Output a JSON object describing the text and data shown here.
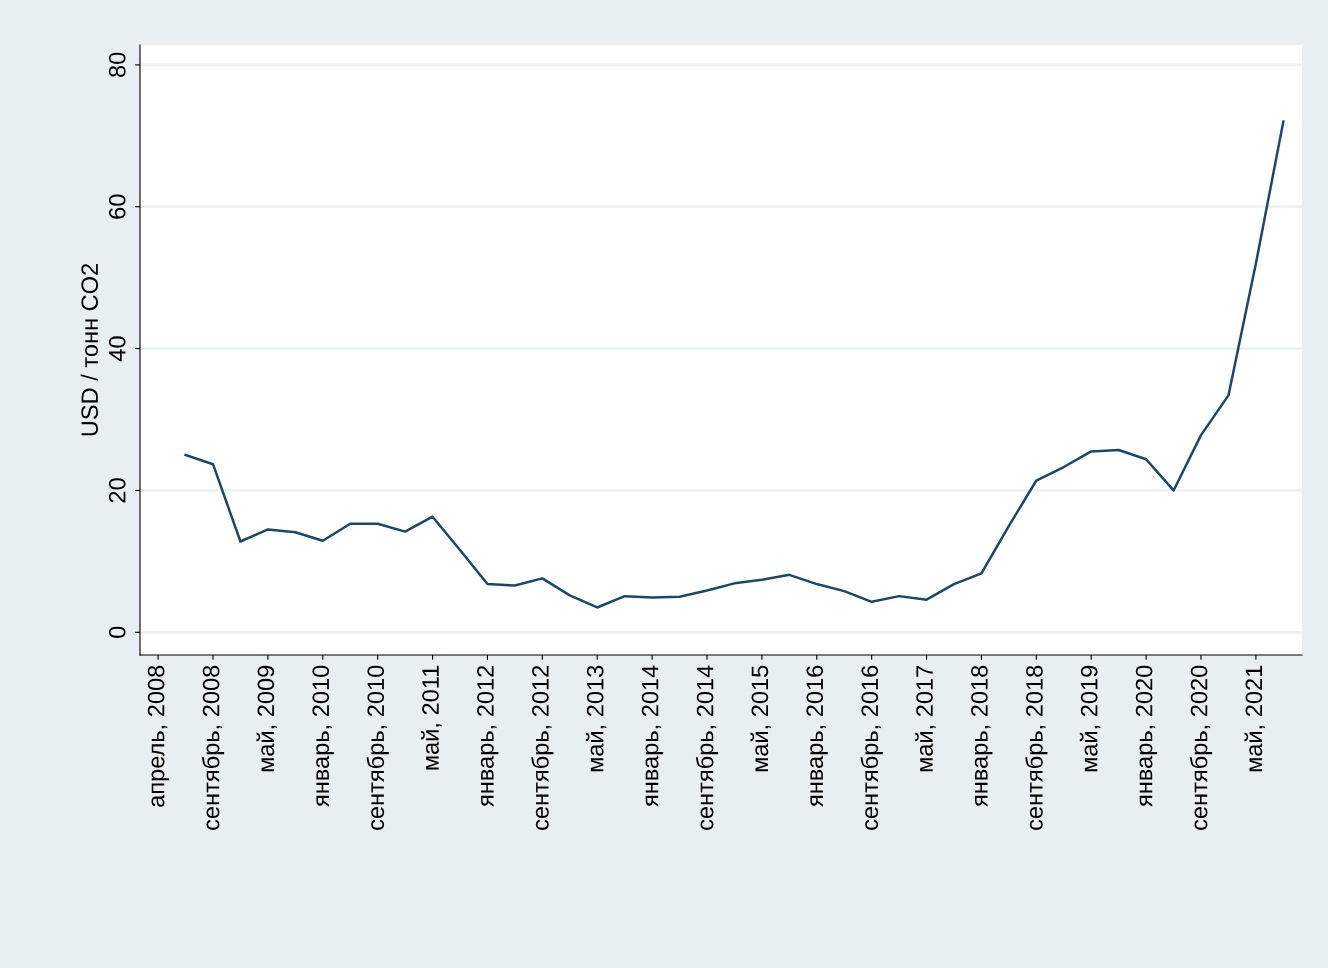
{
  "chart_data": {
    "type": "line",
    "ylabel": "USD / тонн CO2",
    "categories": [
      "апрель, 2008",
      null,
      "сентябрь, 2008",
      null,
      "май, 2009",
      null,
      "январь, 2010",
      null,
      "сентябрь, 2010",
      null,
      "май, 2011",
      null,
      "январь, 2012",
      null,
      "сентябрь, 2012",
      null,
      "май, 2013",
      null,
      "январь, 2014",
      null,
      "сентябрь, 2014",
      null,
      "май, 2015",
      null,
      "январь, 2016",
      null,
      "сентябрь, 2016",
      null,
      "май, 2017",
      null,
      "январь, 2018",
      null,
      "сентябрь, 2018",
      null,
      "май, 2019",
      null,
      "январь, 2020",
      null,
      "сентябрь, 2020",
      null,
      "май, 2021",
      null
    ],
    "series": [
      {
        "color": "#1a476f",
        "values": [
          null,
          25,
          23.7,
          12.8,
          14.5,
          14.1,
          12.9,
          15.3,
          15.3,
          14.2,
          16.3,
          11.6,
          6.8,
          6.6,
          7.6,
          5.2,
          3.5,
          5.1,
          4.9,
          5.0,
          5.9,
          6.9,
          7.4,
          8.1,
          6.8,
          5.8,
          4.3,
          5.1,
          4.6,
          6.8,
          8.3,
          15,
          21.4,
          23.3,
          25.5,
          25.7,
          24.4,
          20,
          27.8,
          33.4,
          52,
          72
        ]
      }
    ],
    "ylim": [
      -3.2,
      82.8
    ],
    "yticks": [
      0,
      20,
      40,
      60,
      80
    ],
    "grid": "y",
    "legend": false
  }
}
